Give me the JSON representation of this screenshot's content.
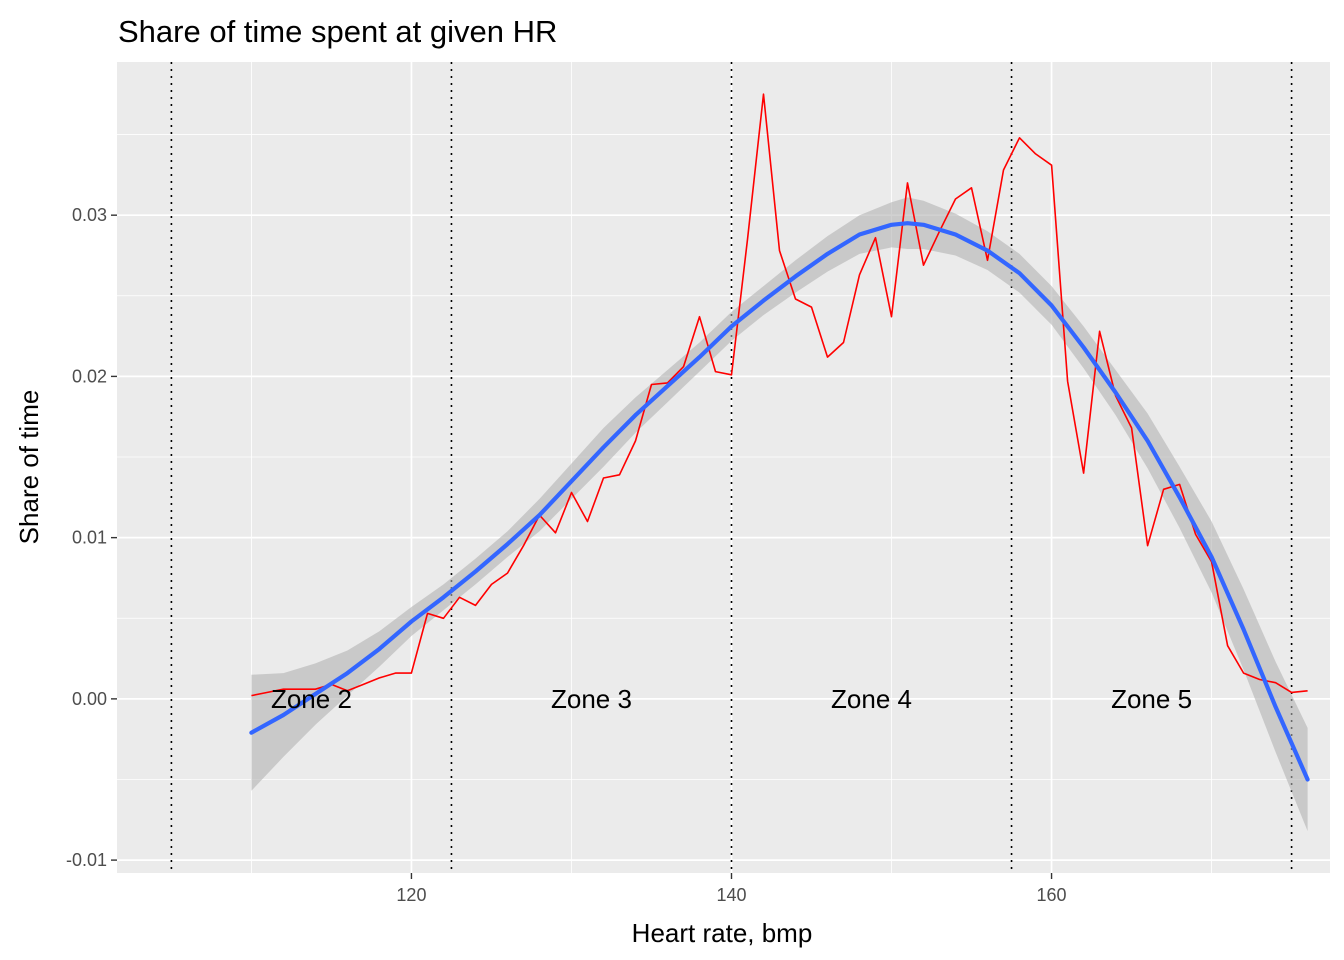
{
  "chart_data": {
    "type": "line",
    "title": "Share of time spent at given HR",
    "xlabel": "Heart rate, bmp",
    "ylabel": "Share of time",
    "xlim": [
      101.6,
      177.4
    ],
    "ylim": [
      -0.0108,
      0.0395
    ],
    "x_ticks": [
      {
        "value": 120,
        "label": "120"
      },
      {
        "value": 140,
        "label": "140"
      },
      {
        "value": 160,
        "label": "160"
      }
    ],
    "x_minor_ticks": [
      110,
      130,
      150,
      170
    ],
    "y_ticks": [
      {
        "value": -0.01,
        "label": "-0.01"
      },
      {
        "value": 0.0,
        "label": "0.00"
      },
      {
        "value": 0.01,
        "label": "0.01"
      },
      {
        "value": 0.02,
        "label": "0.02"
      },
      {
        "value": 0.03,
        "label": "0.03"
      }
    ],
    "y_minor_ticks": [
      -0.005,
      0.005,
      0.015,
      0.025,
      0.035
    ],
    "grid": true,
    "zone_boundaries": [
      105,
      122.5,
      140,
      157.5,
      175
    ],
    "zones": [
      {
        "label": "Zone 2",
        "x": 113.75,
        "y": 0.0
      },
      {
        "label": "Zone 3",
        "x": 131.25,
        "y": 0.0
      },
      {
        "label": "Zone 4",
        "x": 148.75,
        "y": 0.0
      },
      {
        "label": "Zone 5",
        "x": 166.25,
        "y": 0.0
      }
    ],
    "colors": {
      "panel": "#ebebeb",
      "grid": "#ffffff",
      "observed": "#ff0000",
      "smooth": "#3366ff",
      "ribbon": "#b3b3b3",
      "boundary": "#000000"
    },
    "series": [
      {
        "kind": "observed",
        "x": [
          110,
          111,
          112,
          113,
          114,
          115,
          116,
          117,
          118,
          119,
          120,
          121,
          122,
          123,
          124,
          125,
          126,
          127,
          128,
          129,
          130,
          131,
          132,
          133,
          134,
          135,
          136,
          137,
          138,
          139,
          140,
          141,
          142,
          143,
          144,
          145,
          146,
          147,
          148,
          149,
          150,
          151,
          152,
          153,
          154,
          155,
          156,
          157,
          158,
          159,
          160,
          161,
          162,
          163,
          164,
          165,
          166,
          167,
          168,
          169,
          170,
          171,
          172,
          173,
          174,
          175,
          176
        ],
        "y": [
          0.0002,
          0.0004,
          0.0006,
          0.0006,
          0.0006,
          0.0009,
          0.0005,
          0.0009,
          0.0013,
          0.0016,
          0.0016,
          0.0053,
          0.005,
          0.0063,
          0.0058,
          0.0071,
          0.0078,
          0.0095,
          0.0114,
          0.0103,
          0.0128,
          0.011,
          0.0137,
          0.0139,
          0.016,
          0.0195,
          0.0196,
          0.0206,
          0.0237,
          0.0203,
          0.0201,
          0.0285,
          0.0375,
          0.0278,
          0.0248,
          0.0243,
          0.0212,
          0.0221,
          0.0263,
          0.0286,
          0.0237,
          0.032,
          0.0269,
          0.029,
          0.031,
          0.0317,
          0.0272,
          0.0328,
          0.0348,
          0.0338,
          0.0331,
          0.0197,
          0.014,
          0.0228,
          0.0188,
          0.0168,
          0.0095,
          0.013,
          0.0133,
          0.0102,
          0.0085,
          0.0033,
          0.0016,
          0.0012,
          0.001,
          0.0004,
          0.0005
        ]
      },
      {
        "kind": "smooth",
        "x": [
          110,
          112,
          114,
          116,
          118,
          120,
          122,
          124,
          126,
          128,
          130,
          132,
          134,
          136,
          138,
          140,
          142,
          144,
          146,
          148,
          150,
          151,
          152,
          154,
          156,
          158,
          160,
          162,
          164,
          166,
          168,
          170,
          172,
          174,
          176
        ],
        "y": [
          -0.0021,
          -0.001,
          0.0003,
          0.0016,
          0.0031,
          0.0048,
          0.0063,
          0.0079,
          0.0096,
          0.0114,
          0.0135,
          0.0156,
          0.0176,
          0.0194,
          0.0212,
          0.0231,
          0.0247,
          0.0262,
          0.0276,
          0.0288,
          0.0294,
          0.0295,
          0.0294,
          0.0288,
          0.0278,
          0.0264,
          0.0244,
          0.0218,
          0.019,
          0.016,
          0.0125,
          0.0088,
          0.0043,
          -0.0005,
          -0.005
        ],
        "ci_low": [
          -0.0057,
          -0.0036,
          -0.0016,
          0.0002,
          0.002,
          0.0039,
          0.0055,
          0.0071,
          0.0088,
          0.0104,
          0.0124,
          0.0144,
          0.0165,
          0.0184,
          0.0203,
          0.0222,
          0.0238,
          0.0252,
          0.0265,
          0.0276,
          0.028,
          0.0279,
          0.0279,
          0.0275,
          0.0266,
          0.0252,
          0.0232,
          0.0205,
          0.0176,
          0.0143,
          0.0106,
          0.0066,
          0.0018,
          -0.0033,
          -0.0082
        ],
        "ci_high": [
          0.0015,
          0.0016,
          0.0022,
          0.003,
          0.0042,
          0.0057,
          0.0071,
          0.0087,
          0.0104,
          0.0124,
          0.0146,
          0.0168,
          0.0187,
          0.0204,
          0.0221,
          0.024,
          0.0256,
          0.0272,
          0.0287,
          0.03,
          0.0308,
          0.0311,
          0.0309,
          0.0301,
          0.029,
          0.0276,
          0.0256,
          0.0231,
          0.0204,
          0.0177,
          0.0144,
          0.011,
          0.0068,
          0.0023,
          -0.0018
        ]
      }
    ]
  }
}
